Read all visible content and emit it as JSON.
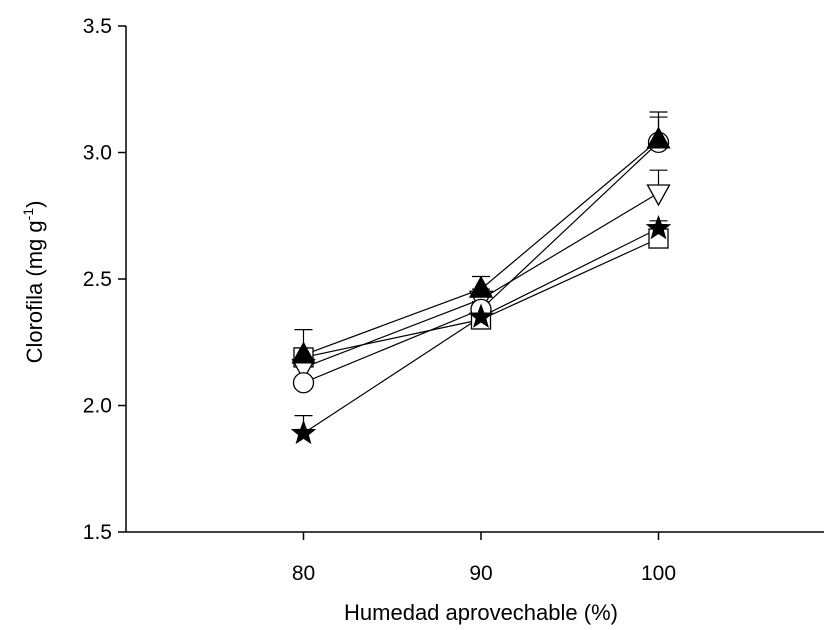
{
  "chart_data": {
    "type": "line",
    "xlabel": "Humedad aprovechable (%)",
    "ylabel": {
      "main": "Clorofila (mg g",
      "sup": "-1",
      "close": ")"
    },
    "xlim": [
      70,
      110
    ],
    "ylim": [
      1.5,
      3.5
    ],
    "x_ticks": [
      80,
      90,
      100
    ],
    "y_ticks": [
      "1.5",
      "2.0",
      "2.5",
      "3.0",
      "3.5"
    ],
    "x": [
      80,
      90,
      100
    ],
    "series": [
      {
        "marker": "open-circle",
        "values": [
          2.09,
          2.38,
          3.04
        ],
        "err": [
          0.0,
          0.03,
          0.1
        ]
      },
      {
        "marker": "filled-triangle-up",
        "values": [
          2.2,
          2.46,
          3.05
        ],
        "err": [
          0.1,
          0.05,
          0.11
        ]
      },
      {
        "marker": "open-triangle-down",
        "values": [
          2.15,
          2.42,
          2.84
        ],
        "err": [
          0.04,
          0.04,
          0.09
        ]
      },
      {
        "marker": "open-square",
        "values": [
          2.19,
          2.34,
          2.66
        ],
        "err": [
          0.03,
          0.03,
          0.03
        ]
      },
      {
        "marker": "filled-star",
        "values": [
          1.89,
          2.35,
          2.7
        ],
        "err": [
          0.07,
          0.03,
          0.03
        ]
      }
    ]
  }
}
